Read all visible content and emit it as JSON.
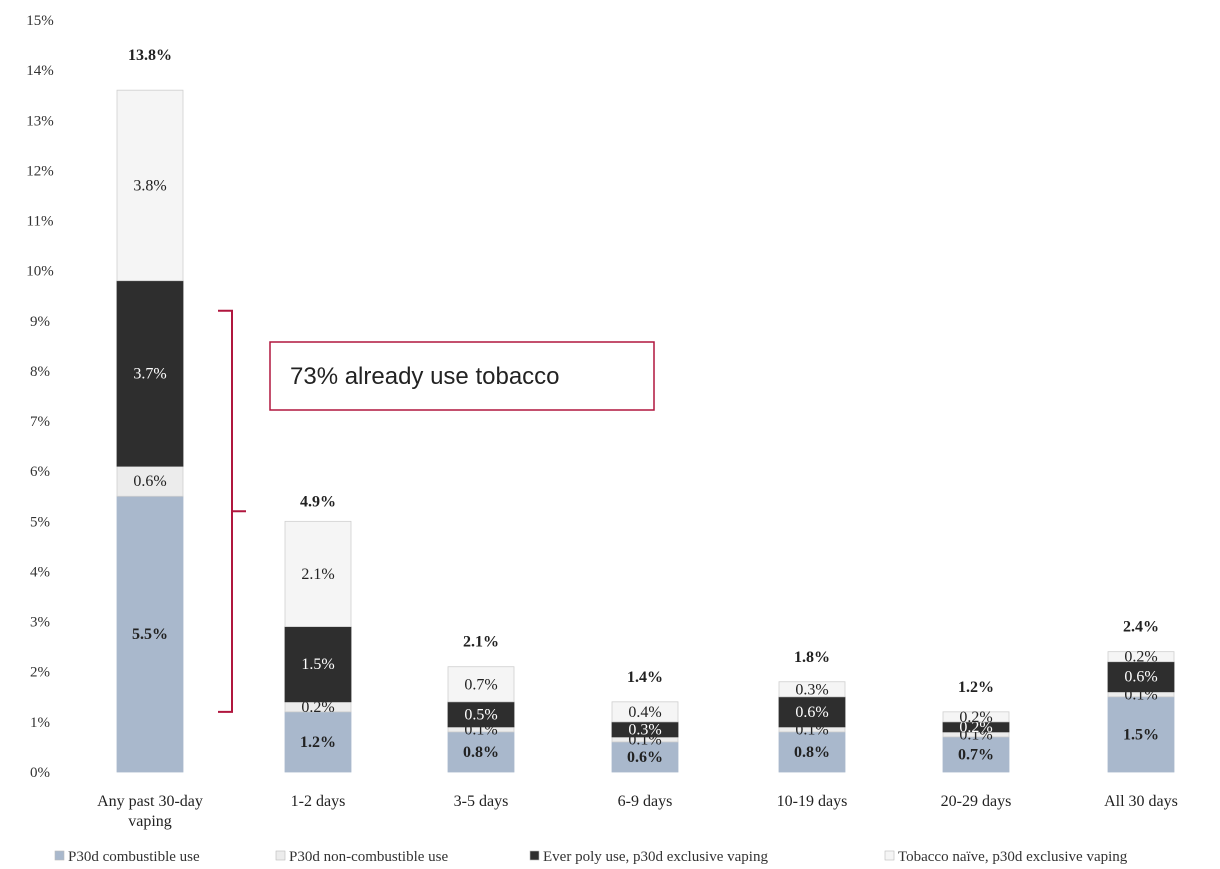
{
  "chart_data": {
    "type": "bar",
    "stacked": true,
    "title": "",
    "xlabel": "",
    "ylabel": "",
    "ylim": [
      0,
      15
    ],
    "yticks": [
      "0%",
      "1%",
      "2%",
      "3%",
      "4%",
      "5%",
      "6%",
      "7%",
      "8%",
      "9%",
      "10%",
      "11%",
      "12%",
      "13%",
      "14%",
      "15%"
    ],
    "grid": false,
    "legend_position": "bottom",
    "categories": [
      [
        "Any past 30-day",
        "vaping"
      ],
      [
        "1-2 days"
      ],
      [
        "3-5 days"
      ],
      [
        "6-9 days"
      ],
      [
        "10-19 days"
      ],
      [
        "20-29 days"
      ],
      [
        "All 30 days"
      ]
    ],
    "totals": [
      "13.8%",
      "4.9%",
      "2.1%",
      "1.4%",
      "1.8%",
      "1.2%",
      "2.4%"
    ],
    "total_values": [
      13.8,
      4.9,
      2.1,
      1.4,
      1.8,
      1.2,
      2.4
    ],
    "series": [
      {
        "name": "P30d combustible use",
        "color": "#a9b8cc",
        "values": [
          5.5,
          1.2,
          0.8,
          0.6,
          0.8,
          0.7,
          1.5
        ],
        "labels": [
          "5.5%",
          "1.2%",
          "0.8%",
          "0.6%",
          "0.8%",
          "0.7%",
          "1.5%"
        ]
      },
      {
        "name": "P30d non-combustible use",
        "color": "#ececec",
        "values": [
          0.6,
          0.2,
          0.1,
          0.1,
          0.1,
          0.1,
          0.1
        ],
        "labels": [
          "0.6%",
          "0.2%",
          "0.1%",
          "0.1%",
          "0.1%",
          "0.1%",
          "0.1%"
        ]
      },
      {
        "name": "Ever poly use, p30d exclusive vaping",
        "color": "#2e2e2e",
        "values": [
          3.7,
          1.5,
          0.5,
          0.3,
          0.6,
          0.2,
          0.6
        ],
        "labels": [
          "3.7%",
          "1.5%",
          "0.5%",
          "0.3%",
          "0.6%",
          "0.2%",
          "0.6%"
        ]
      },
      {
        "name": "Tobacco naïve, p30d exclusive vaping",
        "color": "#f5f5f5",
        "values": [
          3.8,
          2.1,
          0.7,
          0.4,
          0.3,
          0.2,
          0.2
        ],
        "labels": [
          "3.8%",
          "2.1%",
          "0.7%",
          "0.4%",
          "0.3%",
          "0.2%",
          "0.2%"
        ]
      }
    ],
    "annotation": {
      "text": "73% already use tobacco",
      "bracket_from": 1.2,
      "bracket_to": 9.2,
      "accent_color": "#b0163e"
    },
    "legend": [
      "P30d combustible use",
      "P30d non-combustible use",
      "Ever poly use, p30d exclusive vaping",
      "Tobacco naïve, p30d exclusive vaping"
    ]
  }
}
